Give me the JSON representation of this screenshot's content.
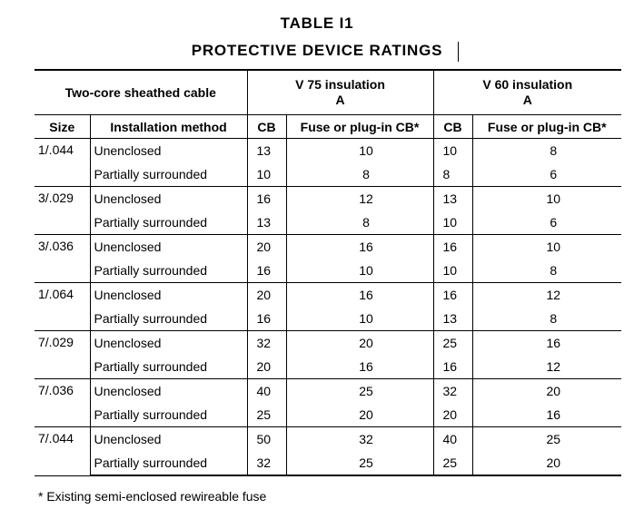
{
  "title": "TABLE   I1",
  "subtitle": "PROTECTIVE DEVICE RATINGS",
  "header": {
    "cable_group": "Two-core sheathed cable",
    "v75_line1": "V 75 insulation",
    "v75_line2": "A",
    "v60_line1": "V 60 insulation",
    "v60_line2": "A",
    "size": "Size",
    "method": "Installation method",
    "cb1": "CB",
    "fuse1": "Fuse or plug-in CB*",
    "cb2": "CB",
    "fuse2": "Fuse or plug-in CB*"
  },
  "groups": [
    {
      "size": "1/.044",
      "rows": [
        {
          "method": "Unenclosed",
          "v75_cb": "13",
          "v75_fuse": "10",
          "v60_cb": "10",
          "v60_fuse": "8"
        },
        {
          "method": "Partially surrounded",
          "v75_cb": "10",
          "v75_fuse": "8",
          "v60_cb": "8",
          "v60_fuse": "6"
        }
      ]
    },
    {
      "size": "3/.029",
      "rows": [
        {
          "method": "Unenclosed",
          "v75_cb": "16",
          "v75_fuse": "12",
          "v60_cb": "13",
          "v60_fuse": "10"
        },
        {
          "method": "Partially surrounded",
          "v75_cb": "13",
          "v75_fuse": "8",
          "v60_cb": "10",
          "v60_fuse": "6"
        }
      ]
    },
    {
      "size": "3/.036",
      "rows": [
        {
          "method": "Unenclosed",
          "v75_cb": "20",
          "v75_fuse": "16",
          "v60_cb": "16",
          "v60_fuse": "10"
        },
        {
          "method": "Partially surrounded",
          "v75_cb": "16",
          "v75_fuse": "10",
          "v60_cb": "10",
          "v60_fuse": "8"
        }
      ]
    },
    {
      "size": "1/.064",
      "rows": [
        {
          "method": "Unenclosed",
          "v75_cb": "20",
          "v75_fuse": "16",
          "v60_cb": "16",
          "v60_fuse": "12"
        },
        {
          "method": "Partially surrounded",
          "v75_cb": "16",
          "v75_fuse": "10",
          "v60_cb": "13",
          "v60_fuse": "8"
        }
      ]
    },
    {
      "size": "7/.029",
      "rows": [
        {
          "method": "Unenclosed",
          "v75_cb": "32",
          "v75_fuse": "20",
          "v60_cb": "25",
          "v60_fuse": "16"
        },
        {
          "method": "Partially surrounded",
          "v75_cb": "20",
          "v75_fuse": "16",
          "v60_cb": "16",
          "v60_fuse": "12"
        }
      ]
    },
    {
      "size": "7/.036",
      "rows": [
        {
          "method": "Unenclosed",
          "v75_cb": "40",
          "v75_fuse": "25",
          "v60_cb": "32",
          "v60_fuse": "20"
        },
        {
          "method": "Partially surrounded",
          "v75_cb": "25",
          "v75_fuse": "20",
          "v60_cb": "20",
          "v60_fuse": "16"
        }
      ]
    },
    {
      "size": "7/.044",
      "rows": [
        {
          "method": "Unenclosed",
          "v75_cb": "50",
          "v75_fuse": "32",
          "v60_cb": "40",
          "v60_fuse": "25"
        },
        {
          "method": "Partially surrounded",
          "v75_cb": "32",
          "v75_fuse": "25",
          "v60_cb": "25",
          "v60_fuse": "20"
        }
      ]
    }
  ],
  "footnote": "* Existing semi-enclosed rewireable fuse"
}
